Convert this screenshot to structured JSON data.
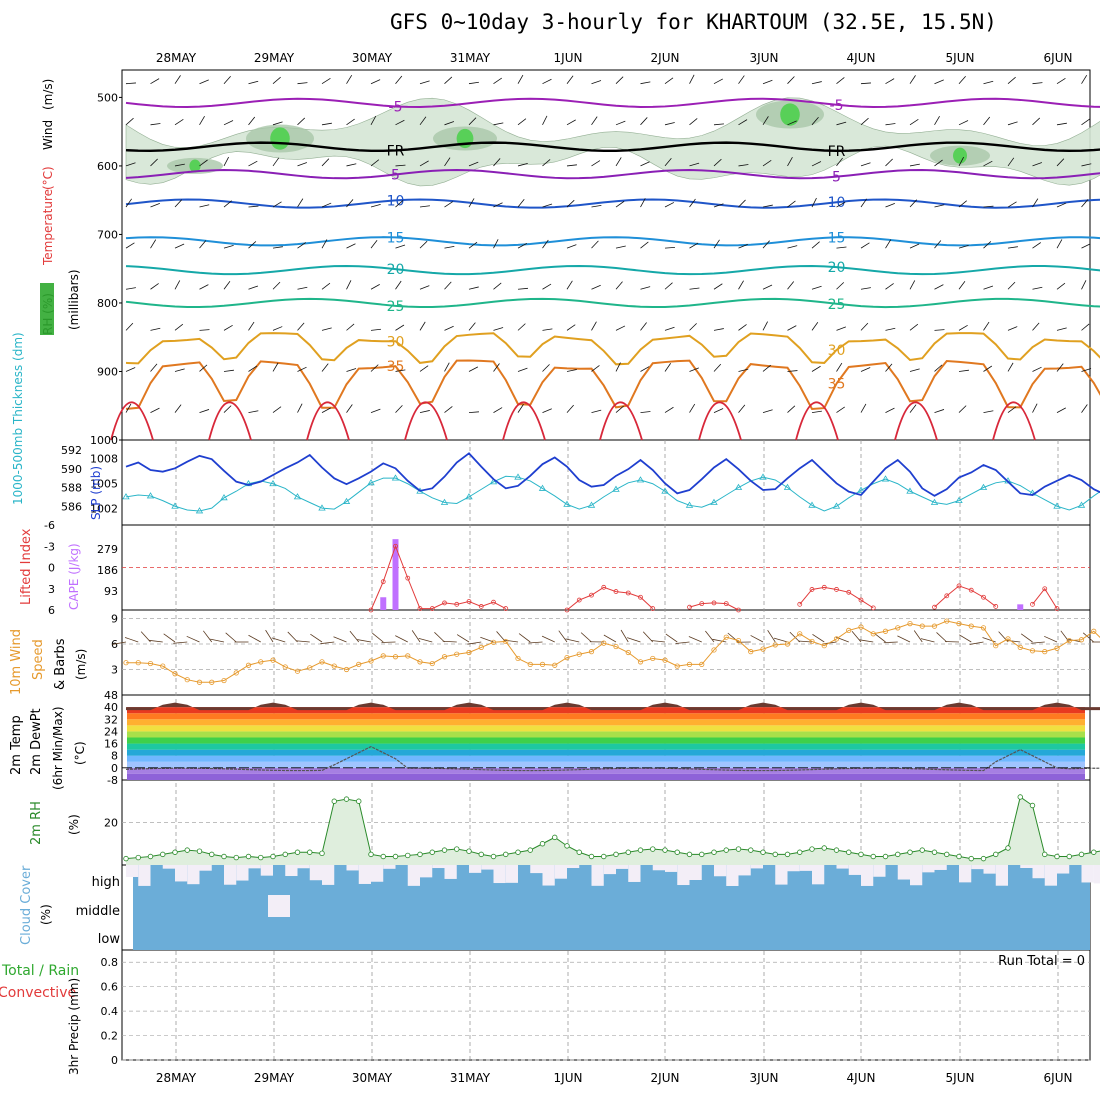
{
  "title": "GFS 0~10day 3-hourly for KHARTOUM (32.5E, 15.5N)",
  "colors": {
    "temperature": "#e23b3b",
    "wind_label": "#000000",
    "rh_fill": "#2fa82f",
    "thickness": "#2ab5c8",
    "slp": "#1f3fcf",
    "lifted_index": "#e23b3b",
    "cape": "#c070ff",
    "wind10": "#e69a2e",
    "cloud": "#6badd8",
    "cloud_gap": "#f3eef7",
    "precip_total": "#2fa82f",
    "precip_conv": "#e23b3b",
    "rh2m": "#2a8a2a"
  },
  "chart_data": [
    {
      "id": "upper-air",
      "type": "heatmap",
      "ylabel_parts": [
        "RH (%)",
        "Temperature",
        "(°C)",
        "Wind",
        "(m/s)"
      ],
      "ylabel2": "(millibars)",
      "y_ticks": [
        500,
        600,
        700,
        800,
        900,
        1000
      ],
      "ylim": [
        460,
        1000
      ],
      "reversed_y": true,
      "isotherms": [
        {
          "label": "-5",
          "p": 508,
          "color": "#9b1fb5"
        },
        {
          "label": "FR",
          "p": 572,
          "color": "#000000"
        },
        {
          "label": "5",
          "p": 612,
          "color": "#8a1fb5"
        },
        {
          "label": "10",
          "p": 655,
          "color": "#1f55c8"
        },
        {
          "label": "15",
          "p": 710,
          "color": "#1f8fd8"
        },
        {
          "label": "20",
          "p": 752,
          "color": "#15a8a8"
        },
        {
          "label": "25",
          "p": 800,
          "color": "#1fb58a"
        },
        {
          "label": "30",
          "p": 850,
          "color": "#e0a020"
        },
        {
          "label": "35",
          "p": 890,
          "color": "#e07820"
        }
      ]
    },
    {
      "id": "thickness-slp",
      "type": "line",
      "ylabel_left": "1000-500mb Thickness (dm)",
      "ylabel_right": "SLP (mb)",
      "left_ticks": [
        586,
        588,
        590,
        592
      ],
      "right_ticks": [
        1002,
        1005,
        1008
      ],
      "series": [
        {
          "name": "1000-500mb Thickness",
          "axis": "left",
          "values": [
            587.0,
            587.2,
            587.1,
            586.6,
            586.0,
            585.6,
            585.5,
            585.8,
            586.9,
            587.6,
            588.4,
            588.7,
            588.4,
            587.9,
            587.0,
            586.4,
            585.8,
            585.7,
            586.5,
            587.5,
            588.5,
            589.0,
            589.0,
            588.4,
            587.6,
            586.9,
            586.4,
            586.3,
            587.0,
            587.8,
            588.6,
            589.2,
            589.1,
            588.7,
            587.9,
            587.1,
            586.2,
            585.7,
            586.1,
            587.0,
            587.8,
            588.5,
            588.8,
            588.4,
            587.6,
            586.6,
            586.1,
            585.9,
            586.4,
            587.2,
            588.0,
            588.7,
            589.1,
            588.8,
            588.0,
            587.0,
            586.1,
            585.5,
            586.0,
            586.9,
            587.7,
            588.4,
            588.9,
            588.4,
            587.6,
            587.0,
            586.4,
            586.2,
            586.6,
            587.3,
            588.0,
            588.5,
            588.7,
            588.2,
            587.4,
            586.7,
            586.0,
            585.6,
            586.1,
            587.1,
            588.0,
            588.7,
            589.3,
            589.8,
            589.9,
            589.5,
            588.7,
            587.8,
            587.4,
            587.9,
            588.5
          ]
        },
        {
          "name": "SLP",
          "axis": "right",
          "values": [
            1007.0,
            1007.5,
            1006.6,
            1006.4,
            1006.8,
            1007.6,
            1008.3,
            1007.9,
            1006.5,
            1005.2,
            1004.8,
            1005.2,
            1006.0,
            1006.8,
            1007.5,
            1008.4,
            1006.9,
            1005.6,
            1004.9,
            1005.6,
            1006.4,
            1007.4,
            1006.8,
            1005.3,
            1004.1,
            1004.4,
            1005.8,
            1007.5,
            1008.6,
            1007.0,
            1005.5,
            1004.4,
            1004.7,
            1005.9,
            1007.3,
            1008.1,
            1007.0,
            1005.4,
            1004.6,
            1004.8,
            1005.9,
            1006.7,
            1007.8,
            1006.6,
            1005.0,
            1003.8,
            1004.2,
            1005.5,
            1006.9,
            1007.9,
            1006.7,
            1005.3,
            1004.2,
            1004.3,
            1005.6,
            1006.8,
            1007.8,
            1006.4,
            1005.0,
            1004.0,
            1003.6,
            1005.2,
            1006.8,
            1007.8,
            1006.4,
            1004.4,
            1003.5,
            1004.3,
            1005.7,
            1006.3,
            1007.2,
            1006.6,
            1005.2,
            1003.8,
            1003.6,
            1004.6,
            1005.3,
            1006.0,
            1005.4,
            1004.3,
            1003.6,
            1003.2,
            1004.4,
            1005.3,
            1004.1,
            1002.4,
            1001.2,
            1002.0,
            1003.5,
            1004.3,
            1005.2
          ]
        }
      ]
    },
    {
      "id": "lifted-cape",
      "type": "line",
      "ylabel_left": "Lifted Index",
      "ylabel_right": "CAPE (J/kg)",
      "li_ticks": [
        "-6",
        "-3",
        "0",
        "3",
        "6"
      ],
      "cape_ticks": [
        "279",
        "186",
        "93"
      ],
      "zero_line": 0,
      "series": [
        {
          "name": "Lifted Index",
          "values": [
            null,
            null,
            null,
            null,
            null,
            null,
            null,
            null,
            null,
            null,
            null,
            null,
            null,
            null,
            null,
            null,
            null,
            null,
            null,
            null,
            6.0,
            2.0,
            -3.0,
            1.5,
            5.8,
            5.8,
            5.0,
            5.2,
            4.8,
            5.5,
            4.9,
            5.8,
            null,
            null,
            null,
            null,
            6.0,
            4.6,
            3.9,
            2.8,
            3.4,
            3.6,
            4.2,
            5.8,
            null,
            null,
            5.6,
            5.1,
            5.0,
            5.1,
            6.0,
            null,
            null,
            null,
            null,
            5.2,
            3.1,
            2.8,
            3.1,
            3.5,
            4.6,
            5.7,
            null,
            null,
            null,
            null,
            5.6,
            4.0,
            2.6,
            3.2,
            4.2,
            5.5,
            null,
            null,
            5.2,
            3.0,
            5.8,
            null,
            null,
            null,
            null,
            null,
            null,
            null,
            6.0,
            4.8,
            4.8,
            5.2,
            5.8,
            null,
            null
          ]
        },
        {
          "name": "CAPE",
          "bars": [
            {
              "i": 21,
              "value": 45
            },
            {
              "i": 22,
              "value": 250
            },
            {
              "i": 73,
              "value": 20
            }
          ]
        }
      ]
    },
    {
      "id": "wind10",
      "type": "line",
      "ylabel": "10m Wind Speed & Barbs (m/s)",
      "ylim": [
        0,
        10
      ],
      "ticks": [
        3,
        6,
        9
      ],
      "series": [
        {
          "name": "10m Wind Speed",
          "values": [
            3.8,
            3.8,
            3.7,
            3.4,
            2.5,
            1.8,
            1.5,
            1.5,
            1.7,
            2.6,
            3.5,
            3.9,
            4.1,
            3.3,
            2.8,
            3.2,
            3.9,
            3.4,
            3.0,
            3.6,
            4.0,
            4.6,
            4.5,
            4.6,
            3.9,
            3.7,
            4.5,
            4.8,
            5.0,
            5.6,
            6.2,
            6.3,
            4.3,
            3.6,
            3.6,
            3.5,
            4.4,
            4.8,
            5.1,
            6.1,
            5.7,
            5.0,
            3.9,
            4.3,
            4.1,
            3.4,
            3.6,
            3.6,
            5.3,
            6.8,
            6.4,
            5.1,
            5.4,
            5.9,
            6.0,
            7.2,
            6.3,
            5.8,
            6.6,
            7.6,
            8.0,
            7.2,
            7.5,
            7.9,
            8.4,
            8.1,
            8.1,
            8.7,
            8.4,
            8.1,
            7.9,
            5.8,
            6.6,
            5.6,
            5.2,
            5.1,
            5.5,
            6.4,
            6.5,
            7.5,
            6.1,
            4.9,
            3.9,
            2.0,
            1.5,
            4.3,
            5.2,
            4.0,
            3.5,
            2.4,
            2.0,
            4.2,
            2.4,
            1.5,
            3.7,
            5.0,
            5.0
          ]
        }
      ]
    },
    {
      "id": "temp2m",
      "type": "area",
      "ylabel": "2m Temp 2m DewPt (6hr Min/Max) (°C)",
      "ticks": [
        -8,
        0,
        8,
        16,
        24,
        32,
        40,
        48
      ],
      "ylim": [
        -8,
        48
      ]
    },
    {
      "id": "rh2m",
      "type": "area",
      "ylabel": "2m RH (%)",
      "ticks": [
        20
      ],
      "ylim": [
        0,
        40
      ],
      "series": [
        {
          "name": "2m RH",
          "values": [
            3,
            3.5,
            4,
            5,
            6,
            7,
            6.5,
            5,
            4,
            3.5,
            4,
            3.5,
            4,
            5,
            6,
            6,
            5.5,
            30,
            31,
            30,
            5,
            4,
            4,
            4.5,
            5,
            6,
            7,
            7.5,
            6.5,
            5,
            4,
            5,
            6,
            7,
            10,
            13,
            9,
            6,
            4,
            4,
            5,
            6,
            7,
            7.5,
            7,
            6,
            5,
            5,
            6,
            7,
            7.5,
            7,
            6,
            5,
            5,
            6,
            7.5,
            8,
            7,
            6,
            5,
            4,
            4,
            5,
            6,
            7,
            6,
            5,
            4,
            3,
            3,
            5,
            8,
            32,
            28,
            5,
            4,
            4,
            5,
            6,
            7,
            8,
            6,
            4,
            4,
            5,
            6,
            8,
            9,
            10,
            8,
            7
          ]
        }
      ]
    },
    {
      "id": "cloud",
      "type": "heatmap",
      "ylabel": "Cloud Cover (%)",
      "rows": [
        "high",
        "middle",
        "low"
      ]
    },
    {
      "id": "precip",
      "type": "bar",
      "ylabel_left_parts": [
        "Total / Rain",
        "Convective"
      ],
      "ylabel": "3hr Precip (mm)",
      "ylim": [
        0,
        0.9
      ],
      "ticks": [
        "0",
        "0.2",
        "0.4",
        "0.6",
        "0.8"
      ],
      "run_total_label": "Run Total = 0"
    }
  ],
  "x_axis": {
    "date_labels": [
      "28MAY",
      "29MAY",
      "30MAY",
      "31MAY",
      "1JUN",
      "2JUN",
      "3JUN",
      "4JUN",
      "5JUN",
      "6JUN"
    ]
  }
}
